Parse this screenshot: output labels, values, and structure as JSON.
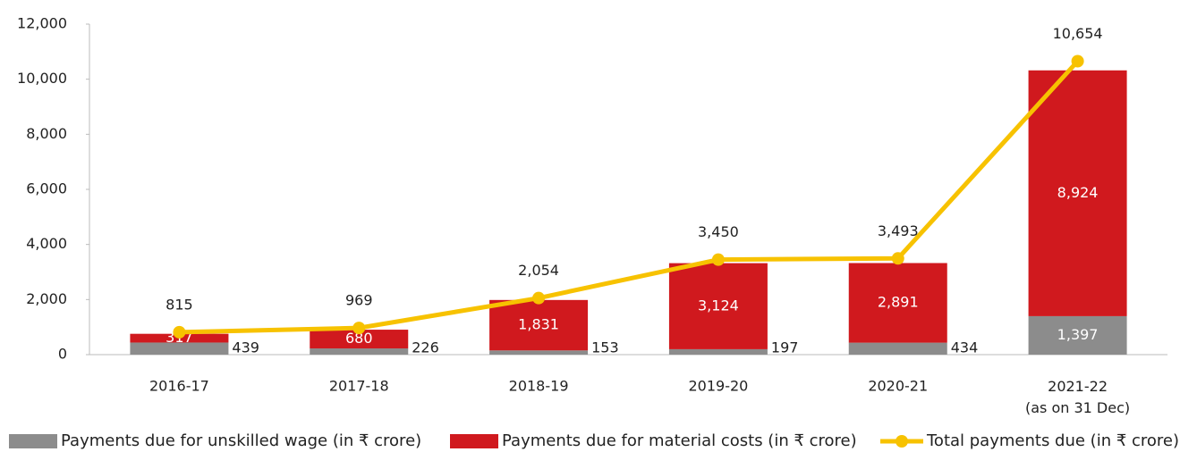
{
  "chart_data": {
    "type": "bar_line",
    "categories": [
      "2016-17",
      "2017-18",
      "2018-19",
      "2019-20",
      "2020-21",
      "2021-22\n(as on 31 Dec)"
    ],
    "series": [
      {
        "name": "Payments due for unskilled wage (in ₹ crore)",
        "color": "#8c8c8c",
        "type": "bar",
        "values": [
          439,
          226,
          153,
          197,
          434,
          1397
        ],
        "value_labels": [
          "439",
          "226",
          "153",
          "197",
          "434",
          "1,397"
        ]
      },
      {
        "name": "Payments due for material costs (in ₹ crore)",
        "color": "#d0191e",
        "type": "bar",
        "values": [
          317,
          680,
          1831,
          3124,
          2891,
          8924
        ],
        "value_labels": [
          "317",
          "680",
          "1,831",
          "3,124",
          "2,891",
          "8,924"
        ]
      },
      {
        "name": "Total payments due (in ₹ crore)",
        "color": "#f7c200",
        "type": "line",
        "values": [
          815,
          969,
          2054,
          3450,
          3493,
          10654
        ],
        "value_labels": [
          "815",
          "969",
          "2,054",
          "3,450",
          "3,493",
          "10,654"
        ]
      }
    ],
    "ylim": [
      0,
      12000
    ],
    "yticks": [
      0,
      {
        "value": 2000,
        "label": "2,000"
      },
      {
        "value": 4000,
        "label": "4,000"
      },
      {
        "value": 6000,
        "label": "6,000"
      },
      {
        "value": 8000,
        "label": "8,000"
      },
      {
        "value": 10000,
        "label": "10,000"
      },
      {
        "value": 12000,
        "label": "12,000"
      }
    ]
  }
}
